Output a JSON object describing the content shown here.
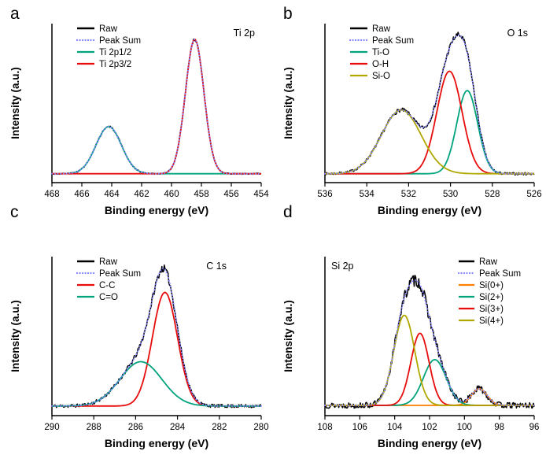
{
  "figure": {
    "panel_labels": [
      "a",
      "b",
      "c",
      "d"
    ]
  },
  "chart_data": [
    {
      "type": "line",
      "panel_label": "a",
      "title": "Ti 2p",
      "title_side": "right",
      "legend_side": "left",
      "xlabel": "Binding energy (eV)",
      "ylabel": "Intensity (a.u.)",
      "x_left": 468,
      "x_right": 454,
      "x_ticks": [
        468,
        466,
        464,
        462,
        460,
        458,
        456,
        454
      ],
      "baseline": 0.03,
      "noise": 0.006,
      "seed": 3,
      "series": [
        {
          "label": "Raw",
          "kind": "raw",
          "color": "#000000"
        },
        {
          "label": "Peak Sum",
          "kind": "sum",
          "color": "#8282ff"
        },
        {
          "label": "Ti 2p1/2",
          "kind": "peak",
          "color": "#00a37c",
          "center": 464.2,
          "sigma": 0.85,
          "amp": 0.34
        },
        {
          "label": "Ti 2p3/2",
          "kind": "peak",
          "color": "#e80c0c",
          "center": 458.45,
          "sigma": 0.62,
          "amp": 0.97
        }
      ]
    },
    {
      "type": "line",
      "panel_label": "b",
      "title": "O 1s",
      "title_side": "right",
      "legend_side": "left",
      "xlabel": "Binding energy (eV)",
      "ylabel": "Intensity (a.u.)",
      "x_left": 536,
      "x_right": 526,
      "x_ticks": [
        536,
        534,
        532,
        530,
        528,
        526
      ],
      "baseline": 0.03,
      "noise": 0.012,
      "seed": 7,
      "series": [
        {
          "label": "Raw",
          "kind": "raw",
          "color": "#000000"
        },
        {
          "label": "Peak Sum",
          "kind": "sum",
          "color": "#8282ff"
        },
        {
          "label": "Ti-O",
          "kind": "peak",
          "color": "#00a37c",
          "center": 529.2,
          "sigma": 0.5,
          "amp": 0.6
        },
        {
          "label": "O-H",
          "kind": "peak",
          "color": "#e80c0c",
          "center": 530.05,
          "sigma": 0.6,
          "amp": 0.74
        },
        {
          "label": "Si-O",
          "kind": "peak",
          "color": "#b0a800",
          "center": 532.35,
          "sigma": 0.95,
          "amp": 0.46
        }
      ]
    },
    {
      "type": "line",
      "panel_label": "c",
      "title": "C 1s",
      "title_side": "inner-right",
      "legend_side": "left",
      "xlabel": "Binding energy (eV)",
      "ylabel": "Intensity (a.u.)",
      "x_left": 290,
      "x_right": 280,
      "x_ticks": [
        290,
        288,
        286,
        284,
        282,
        280
      ],
      "baseline": 0.035,
      "noise": 0.016,
      "seed": 11,
      "series": [
        {
          "label": "Raw",
          "kind": "raw",
          "color": "#000000"
        },
        {
          "label": "Peak Sum",
          "kind": "sum",
          "color": "#8282ff"
        },
        {
          "label": "C-C",
          "kind": "peak",
          "color": "#e80c0c",
          "center": 284.6,
          "sigma": 0.6,
          "amp": 0.82
        },
        {
          "label": "C=O",
          "kind": "peak",
          "color": "#00a37c",
          "center": 285.75,
          "sigma": 1.0,
          "amp": 0.32
        }
      ]
    },
    {
      "type": "line",
      "panel_label": "d",
      "title": "Si 2p",
      "title_side": "left",
      "legend_side": "right",
      "xlabel": "Binding energy (eV)",
      "ylabel": "Intensity (a.u.)",
      "x_left": 108,
      "x_right": 96,
      "x_ticks": [
        108,
        106,
        104,
        102,
        100,
        98,
        96
      ],
      "baseline": 0.04,
      "noise": 0.028,
      "seed": 13,
      "series": [
        {
          "label": "Raw",
          "kind": "raw",
          "color": "#000000"
        },
        {
          "label": "Peak Sum",
          "kind": "sum",
          "color": "#8282ff"
        },
        {
          "label": "Si(0+)",
          "kind": "peak",
          "color": "#ff7f00",
          "center": 99.15,
          "sigma": 0.45,
          "amp": 0.12
        },
        {
          "label": "Si(2+)",
          "kind": "peak",
          "color": "#00a37c",
          "center": 101.7,
          "sigma": 0.65,
          "amp": 0.33
        },
        {
          "label": "Si(3+)",
          "kind": "peak",
          "color": "#e80c0c",
          "center": 102.55,
          "sigma": 0.52,
          "amp": 0.52
        },
        {
          "label": "Si(4+)",
          "kind": "peak",
          "color": "#b0a800",
          "center": 103.45,
          "sigma": 0.6,
          "amp": 0.65
        }
      ]
    }
  ]
}
